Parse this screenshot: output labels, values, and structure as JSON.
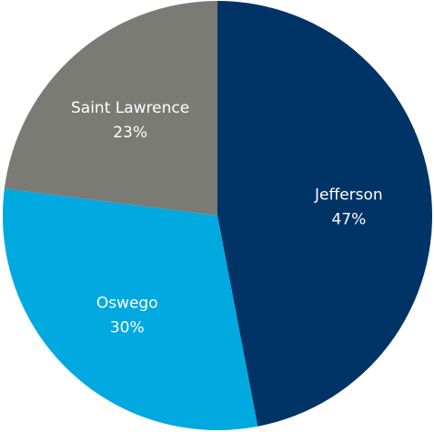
{
  "chart_data": {
    "type": "pie",
    "start_angle_deg": 0,
    "direction": "clockwise",
    "slices": [
      {
        "label": "Jefferson",
        "value": 47,
        "value_label": "47%",
        "color": "#003366"
      },
      {
        "label": "Oswego",
        "value": 30,
        "value_label": "30%",
        "color": "#00A9E0"
      },
      {
        "label": "Saint Lawrence",
        "value": 23,
        "value_label": "23%",
        "color": "#7B7B75"
      }
    ]
  }
}
